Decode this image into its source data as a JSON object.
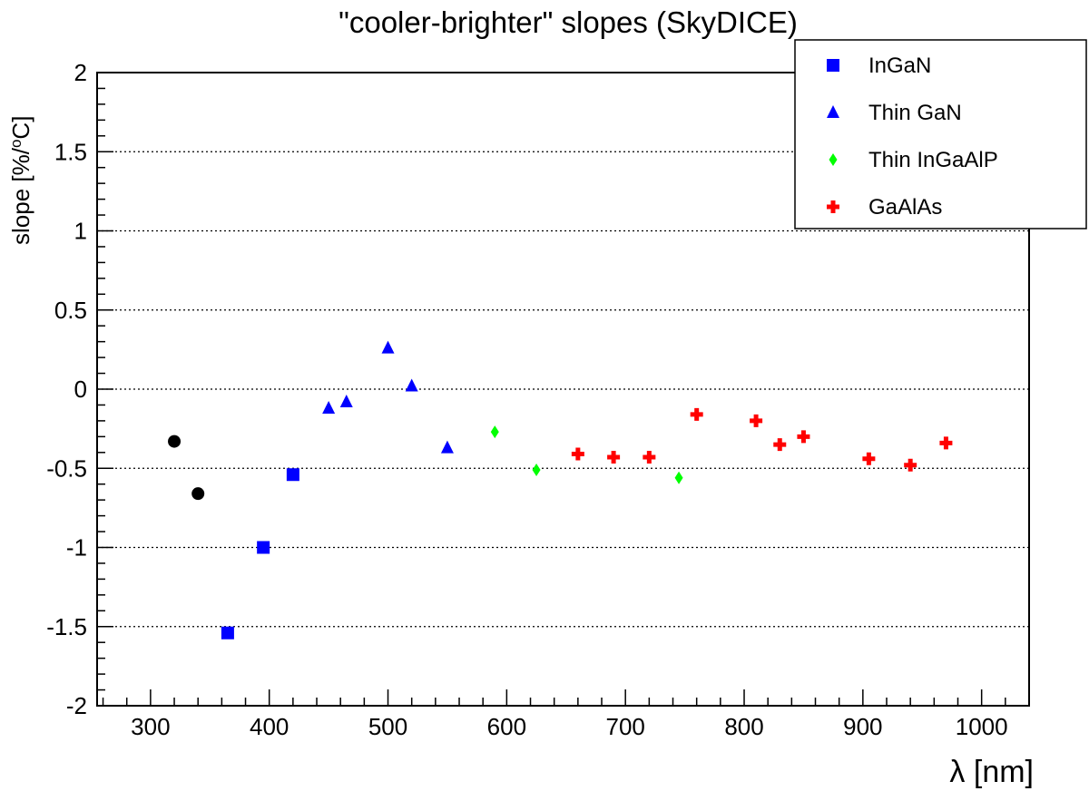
{
  "chart_data": {
    "type": "scatter",
    "title": "\"cooler-brighter\" slopes (SkyDICE)",
    "xlabel": "λ [nm]",
    "ylabel": "slope  [%/°C]",
    "xlim": [
      255,
      1040
    ],
    "ylim": [
      -2,
      2
    ],
    "xticks": [
      300,
      400,
      500,
      600,
      700,
      800,
      900,
      1000
    ],
    "yticks": [
      -2,
      -1.5,
      -1,
      -0.5,
      0,
      0.5,
      1,
      1.5,
      2
    ],
    "ytick_labels": [
      "-2",
      "-1.5",
      "-1",
      "-0.5",
      "0",
      "0.5",
      "1",
      "1.5",
      "2"
    ],
    "y_gridlines": [
      -1.5,
      -1,
      -0.5,
      0,
      0.5,
      1,
      1.5
    ],
    "grid": "horizontal dotted",
    "legend_position": "top-right",
    "series": [
      {
        "name": "InGaN",
        "marker": "square",
        "color": "#0000ff",
        "in_legend": true,
        "points": [
          [
            365,
            -1.54
          ],
          [
            395,
            -1.0
          ],
          [
            420,
            -0.54
          ]
        ]
      },
      {
        "name": "Thin GaN",
        "marker": "triangle",
        "color": "#0000ff",
        "in_legend": true,
        "points": [
          [
            450,
            -0.12
          ],
          [
            465,
            -0.08
          ],
          [
            500,
            0.26
          ],
          [
            520,
            0.02
          ],
          [
            550,
            -0.37
          ]
        ]
      },
      {
        "name": "Thin InGaAlP",
        "marker": "diamond",
        "color": "#00ff00",
        "in_legend": true,
        "points": [
          [
            590,
            -0.27
          ],
          [
            625,
            -0.51
          ],
          [
            745,
            -0.56
          ]
        ]
      },
      {
        "name": "GaAlAs",
        "marker": "cross",
        "color": "#ff0000",
        "in_legend": true,
        "points": [
          [
            660,
            -0.41
          ],
          [
            690,
            -0.43
          ],
          [
            720,
            -0.43
          ],
          [
            760,
            -0.16
          ],
          [
            810,
            -0.2
          ],
          [
            830,
            -0.35
          ],
          [
            850,
            -0.3
          ],
          [
            905,
            -0.44
          ],
          [
            940,
            -0.48
          ],
          [
            970,
            -0.34
          ]
        ]
      },
      {
        "marker": "circle",
        "color": "#000000",
        "in_legend": false,
        "points": [
          [
            320,
            -0.33
          ],
          [
            340,
            -0.66
          ]
        ]
      }
    ]
  }
}
